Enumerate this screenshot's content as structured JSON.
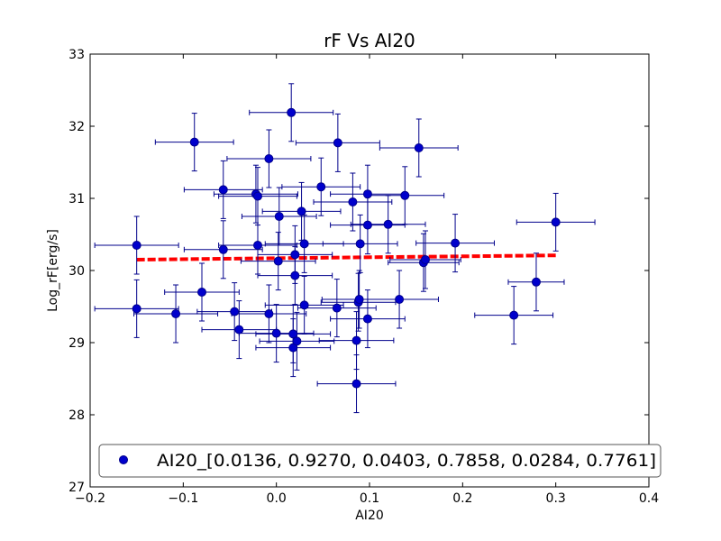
{
  "chart_data": {
    "type": "scatter",
    "title": "rF Vs AI20",
    "xlabel": "AI20",
    "ylabel": "Log_rF[erg/s]",
    "xlim": [
      -0.2,
      0.4
    ],
    "ylim": [
      27,
      33
    ],
    "x_ticks": [
      -0.2,
      -0.1,
      0.0,
      0.1,
      0.2,
      0.3,
      0.4
    ],
    "x_tick_labels": [
      "−0.2",
      "−0.1",
      "0.0",
      "0.1",
      "0.2",
      "0.3",
      "0.4"
    ],
    "y_ticks": [
      27,
      28,
      29,
      30,
      31,
      32,
      33
    ],
    "y_tick_labels": [
      "27",
      "28",
      "29",
      "30",
      "31",
      "32",
      "33"
    ],
    "grid": false,
    "legend": {
      "position": "bottom",
      "entries": [
        "AI20_[0.0136, 0.9270, 0.0403, 0.7858, 0.0284, 0.7761]"
      ]
    },
    "colors": {
      "points": "#0000cc",
      "errorbars": "#00008b",
      "fit": "#ff0000"
    },
    "fit_line": {
      "x": [
        -0.15,
        0.3
      ],
      "y": [
        30.15,
        30.21
      ],
      "style": "dashed"
    },
    "series": [
      {
        "name": "AI20_[0.0136, 0.9270, 0.0403, 0.7858, 0.0284, 0.7761]",
        "points": [
          {
            "x": -0.15,
            "y": 30.35,
            "xerr": 0.045,
            "yerr": 0.4
          },
          {
            "x": -0.15,
            "y": 29.47,
            "xerr": 0.045,
            "yerr": 0.4
          },
          {
            "x": -0.108,
            "y": 29.4,
            "xerr": 0.045,
            "yerr": 0.4
          },
          {
            "x": -0.088,
            "y": 31.78,
            "xerr": 0.042,
            "yerr": 0.4
          },
          {
            "x": -0.08,
            "y": 29.7,
            "xerr": 0.04,
            "yerr": 0.4
          },
          {
            "x": -0.057,
            "y": 31.12,
            "xerr": 0.042,
            "yerr": 0.4
          },
          {
            "x": -0.057,
            "y": 30.29,
            "xerr": 0.042,
            "yerr": 0.4
          },
          {
            "x": -0.045,
            "y": 29.43,
            "xerr": 0.04,
            "yerr": 0.4
          },
          {
            "x": -0.04,
            "y": 29.18,
            "xerr": 0.04,
            "yerr": 0.4
          },
          {
            "x": -0.022,
            "y": 31.06,
            "xerr": 0.045,
            "yerr": 0.4
          },
          {
            "x": -0.02,
            "y": 31.03,
            "xerr": 0.042,
            "yerr": 0.4
          },
          {
            "x": -0.02,
            "y": 30.35,
            "xerr": 0.042,
            "yerr": 0.4
          },
          {
            "x": -0.008,
            "y": 31.55,
            "xerr": 0.045,
            "yerr": 0.4
          },
          {
            "x": -0.008,
            "y": 29.4,
            "xerr": 0.04,
            "yerr": 0.4
          },
          {
            "x": 0.0,
            "y": 29.13,
            "xerr": 0.04,
            "yerr": 0.4
          },
          {
            "x": 0.002,
            "y": 30.13,
            "xerr": 0.04,
            "yerr": 0.4
          },
          {
            "x": 0.003,
            "y": 30.75,
            "xerr": 0.04,
            "yerr": 0.4
          },
          {
            "x": 0.016,
            "y": 32.19,
            "xerr": 0.045,
            "yerr": 0.4
          },
          {
            "x": 0.018,
            "y": 29.12,
            "xerr": 0.04,
            "yerr": 0.4
          },
          {
            "x": 0.018,
            "y": 28.93,
            "xerr": 0.04,
            "yerr": 0.4
          },
          {
            "x": 0.02,
            "y": 30.22,
            "xerr": 0.04,
            "yerr": 0.4
          },
          {
            "x": 0.02,
            "y": 29.93,
            "xerr": 0.04,
            "yerr": 0.4
          },
          {
            "x": 0.022,
            "y": 29.02,
            "xerr": 0.04,
            "yerr": 0.4
          },
          {
            "x": 0.027,
            "y": 30.82,
            "xerr": 0.042,
            "yerr": 0.4
          },
          {
            "x": 0.03,
            "y": 30.37,
            "xerr": 0.042,
            "yerr": 0.4
          },
          {
            "x": 0.03,
            "y": 29.52,
            "xerr": 0.042,
            "yerr": 0.4
          },
          {
            "x": 0.048,
            "y": 31.16,
            "xerr": 0.042,
            "yerr": 0.4
          },
          {
            "x": 0.065,
            "y": 29.48,
            "xerr": 0.042,
            "yerr": 0.4
          },
          {
            "x": 0.066,
            "y": 31.77,
            "xerr": 0.045,
            "yerr": 0.4
          },
          {
            "x": 0.082,
            "y": 30.95,
            "xerr": 0.042,
            "yerr": 0.4
          },
          {
            "x": 0.086,
            "y": 29.03,
            "xerr": 0.04,
            "yerr": 0.4
          },
          {
            "x": 0.086,
            "y": 28.43,
            "xerr": 0.042,
            "yerr": 0.4
          },
          {
            "x": 0.088,
            "y": 29.56,
            "xerr": 0.04,
            "yerr": 0.4
          },
          {
            "x": 0.089,
            "y": 29.6,
            "xerr": 0.04,
            "yerr": 0.4
          },
          {
            "x": 0.09,
            "y": 30.37,
            "xerr": 0.04,
            "yerr": 0.4
          },
          {
            "x": 0.098,
            "y": 31.06,
            "xerr": 0.04,
            "yerr": 0.4
          },
          {
            "x": 0.098,
            "y": 30.63,
            "xerr": 0.04,
            "yerr": 0.4
          },
          {
            "x": 0.098,
            "y": 29.33,
            "xerr": 0.04,
            "yerr": 0.4
          },
          {
            "x": 0.12,
            "y": 30.64,
            "xerr": 0.04,
            "yerr": 0.4
          },
          {
            "x": 0.132,
            "y": 29.6,
            "xerr": 0.042,
            "yerr": 0.4
          },
          {
            "x": 0.138,
            "y": 31.04,
            "xerr": 0.042,
            "yerr": 0.4
          },
          {
            "x": 0.153,
            "y": 31.7,
            "xerr": 0.042,
            "yerr": 0.4
          },
          {
            "x": 0.158,
            "y": 30.11,
            "xerr": 0.038,
            "yerr": 0.4
          },
          {
            "x": 0.16,
            "y": 30.15,
            "xerr": 0.038,
            "yerr": 0.4
          },
          {
            "x": 0.192,
            "y": 30.38,
            "xerr": 0.042,
            "yerr": 0.4
          },
          {
            "x": 0.255,
            "y": 29.38,
            "xerr": 0.042,
            "yerr": 0.4
          },
          {
            "x": 0.279,
            "y": 29.84,
            "xerr": 0.03,
            "yerr": 0.4
          },
          {
            "x": 0.3,
            "y": 30.67,
            "xerr": 0.042,
            "yerr": 0.4
          }
        ]
      }
    ]
  }
}
